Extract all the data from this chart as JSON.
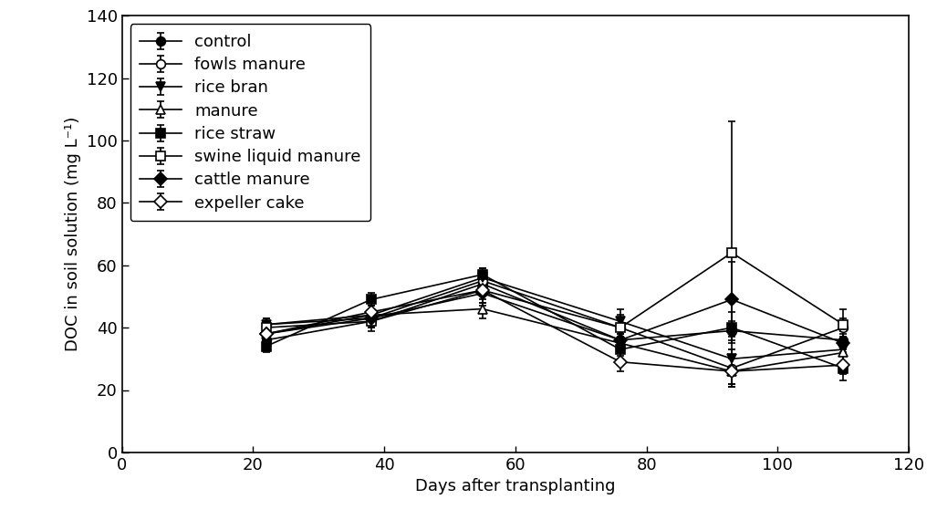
{
  "x": [
    22,
    38,
    55,
    76,
    93,
    110
  ],
  "series": [
    {
      "name": "control",
      "y": [
        36,
        42,
        54,
        36,
        39,
        36
      ],
      "yerr": [
        2,
        2,
        2,
        2,
        3,
        3
      ],
      "marker": "o",
      "fillstyle": "full"
    },
    {
      "name": "fowls manure",
      "y": [
        41,
        43,
        55,
        40,
        27,
        40
      ],
      "yerr": [
        2,
        3,
        4,
        6,
        6,
        3
      ],
      "marker": "o",
      "fillstyle": "none"
    },
    {
      "name": "rice bran",
      "y": [
        41,
        44,
        56,
        42,
        30,
        33
      ],
      "yerr": [
        2,
        2,
        3,
        2,
        3,
        2
      ],
      "marker": "v",
      "fillstyle": "full"
    },
    {
      "name": "manure",
      "y": [
        38,
        44,
        46,
        35,
        26,
        32
      ],
      "yerr": [
        2,
        3,
        3,
        3,
        4,
        3
      ],
      "marker": "^",
      "fillstyle": "none"
    },
    {
      "name": "rice straw",
      "y": [
        34,
        49,
        57,
        33,
        40,
        27
      ],
      "yerr": [
        2,
        2,
        2,
        2,
        5,
        4
      ],
      "marker": "s",
      "fillstyle": "full"
    },
    {
      "name": "swine liquid manure",
      "y": [
        40,
        42,
        52,
        40,
        64,
        41
      ],
      "yerr": [
        2,
        3,
        4,
        3,
        42,
        5
      ],
      "marker": "s",
      "fillstyle": "none"
    },
    {
      "name": "cattle manure",
      "y": [
        38,
        43,
        51,
        36,
        49,
        35
      ],
      "yerr": [
        2,
        3,
        4,
        3,
        12,
        3
      ],
      "marker": "D",
      "fillstyle": "full"
    },
    {
      "name": "expeller cake",
      "y": [
        38,
        45,
        52,
        29,
        26,
        28
      ],
      "yerr": [
        2,
        3,
        4,
        3,
        5,
        3
      ],
      "marker": "D",
      "fillstyle": "none"
    }
  ],
  "xlabel": "Days after transplanting",
  "ylabel": "DOC in soil solution (mg L⁻¹)",
  "xlim": [
    0,
    120
  ],
  "ylim": [
    0,
    140
  ],
  "xticks": [
    0,
    20,
    40,
    60,
    80,
    100,
    120
  ],
  "yticks": [
    0,
    20,
    40,
    60,
    80,
    100,
    120,
    140
  ],
  "color": "black",
  "linewidth": 1.2,
  "markersize": 7,
  "capsize": 3,
  "elinewidth": 1.2,
  "legend_fontsize": 13,
  "axis_fontsize": 13,
  "tick_fontsize": 13
}
